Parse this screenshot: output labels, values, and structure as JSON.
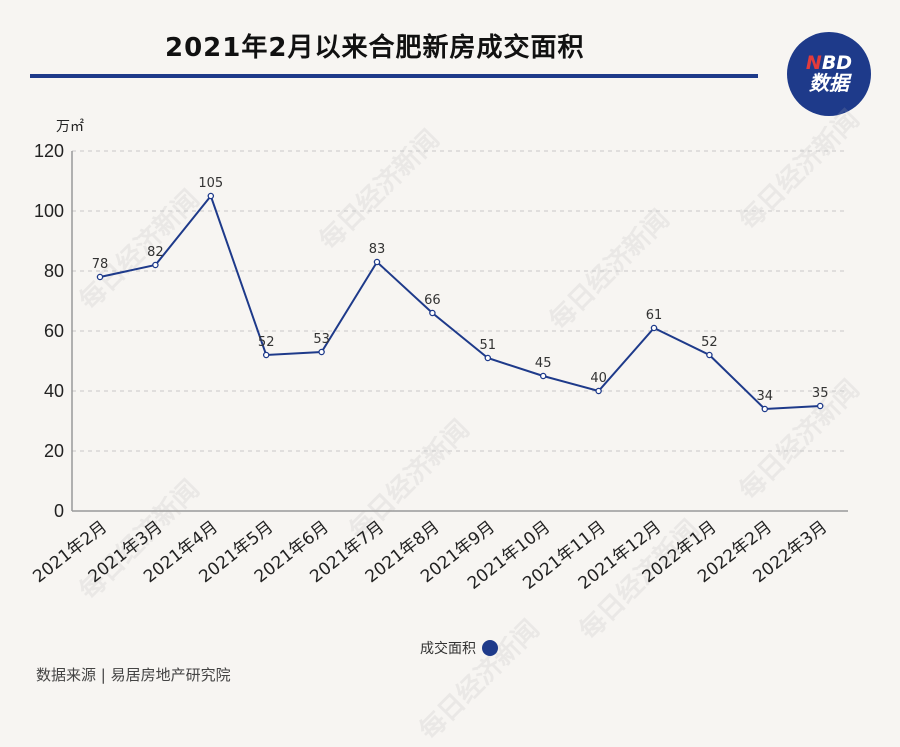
{
  "title": "2021年2月以来合肥新房成交面积",
  "logo": {
    "line1_n": "N",
    "line1_rest": "BD",
    "line2": "数据"
  },
  "watermark_text": "每日经济新闻",
  "source": "数据来源 | 易居房地产研究院",
  "colors": {
    "line": "#1e3a8a",
    "accent": "#1e3a8a",
    "grid": "#c8c8c8"
  },
  "chart_data": {
    "type": "line",
    "ylabel": "万㎡",
    "ylim": [
      0,
      120
    ],
    "yticks": [
      0,
      20,
      40,
      60,
      80,
      100,
      120
    ],
    "grid": true,
    "legend": "bottom-center",
    "categories": [
      "2021年2月",
      "2021年3月",
      "2021年4月",
      "2021年5月",
      "2021年6月",
      "2021年7月",
      "2021年8月",
      "2021年9月",
      "2021年10月",
      "2021年11月",
      "2021年12月",
      "2022年1月",
      "2022年2月",
      "2022年3月"
    ],
    "series": [
      {
        "name": "成交面积",
        "values": [
          78,
          82,
          105,
          52,
          53,
          83,
          66,
          51,
          45,
          40,
          61,
          52,
          34,
          35
        ]
      }
    ]
  }
}
